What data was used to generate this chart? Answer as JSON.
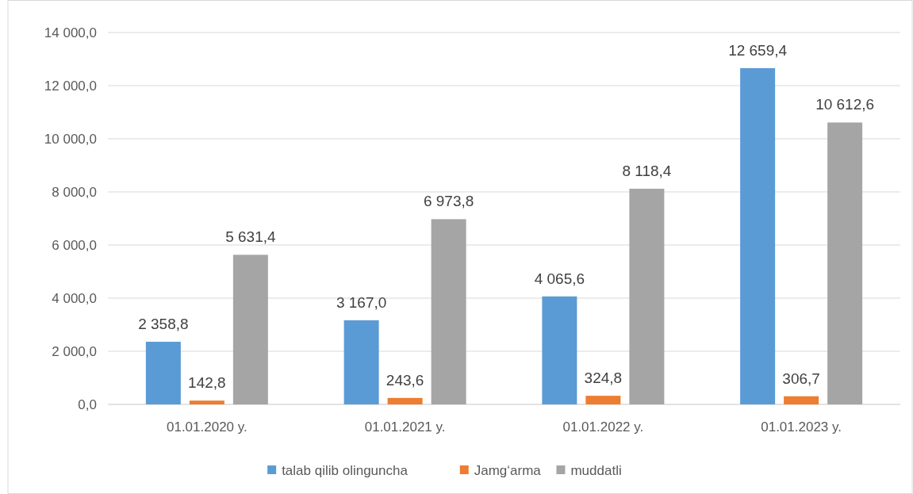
{
  "chart_data": {
    "type": "bar",
    "categories": [
      "01.01.2020 y.",
      "01.01.2021 y.",
      "01.01.2022 y.",
      "01.01.2023 y."
    ],
    "series": [
      {
        "name": "talab qilib olinguncha",
        "color": "#5b9bd5",
        "values": [
          2358.8,
          3167.0,
          4065.6,
          12659.4
        ],
        "value_labels": [
          "2 358,8",
          "3 167,0",
          "4 065,6",
          "12 659,4"
        ]
      },
      {
        "name": "Jamg‘arma",
        "color": "#ed7d31",
        "values": [
          142.8,
          243.6,
          324.8,
          306.7
        ],
        "value_labels": [
          "142,8",
          "243,6",
          "324,8",
          "306,7"
        ]
      },
      {
        "name": "muddatli",
        "color": "#a5a5a5",
        "values": [
          5631.4,
          6973.8,
          8118.4,
          10612.6
        ],
        "value_labels": [
          "5 631,4",
          "6 973,8",
          "8 118,4",
          "10 612,6"
        ]
      }
    ],
    "ylim": [
      0,
      14000
    ],
    "yticks": [
      {
        "value": 0,
        "label": "0,0"
      },
      {
        "value": 2000,
        "label": "2 000,0"
      },
      {
        "value": 4000,
        "label": "4 000,0"
      },
      {
        "value": 6000,
        "label": "6 000,0"
      },
      {
        "value": 8000,
        "label": "8 000,0"
      },
      {
        "value": 10000,
        "label": "10 000,0"
      },
      {
        "value": 12000,
        "label": "12 000,0"
      },
      {
        "value": 14000,
        "label": "14 000,0"
      }
    ],
    "grid": "y",
    "legend": "bottom"
  }
}
